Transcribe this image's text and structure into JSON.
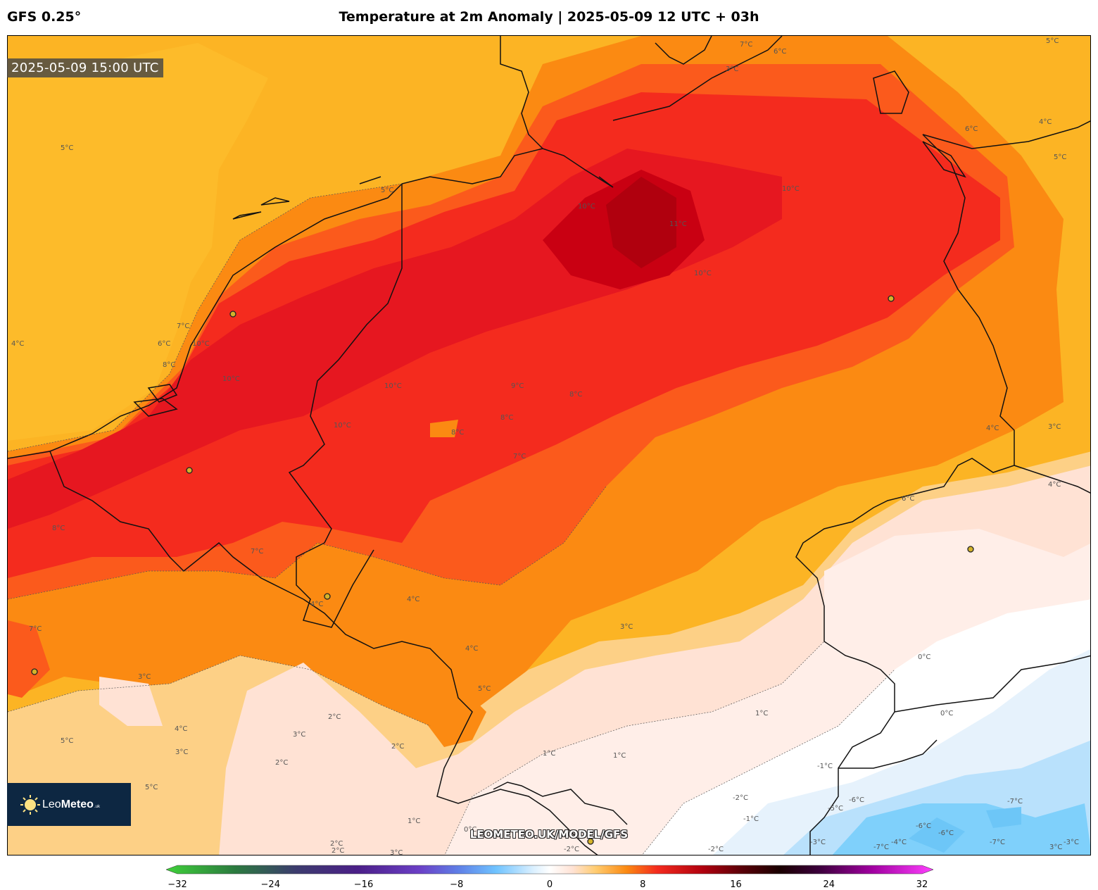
{
  "header": {
    "model_label": "GFS 0.25°",
    "title": "Temperature at 2m Anomaly | 2025-05-09 12 UTC + 03h"
  },
  "valid_time": "2025-05-09 15:00 UTC",
  "watermark": "LEOMETEO.UK/MODEL/GFS",
  "logo": {
    "name": "LeoMeteo",
    "name_light": "Leo",
    "name_bold": "Meteo",
    "suffix": ".uk"
  },
  "colorbar": {
    "min": -32,
    "max": 32,
    "ticks": [
      -32,
      -24,
      -16,
      -8,
      0,
      8,
      16,
      24,
      32
    ],
    "tick_labels": [
      "−32",
      "−24",
      "−16",
      "−8",
      "0",
      "8",
      "16",
      "24",
      "32"
    ],
    "colors": [
      "#3fd13a",
      "#2b7a3f",
      "#3c3b6e",
      "#4b1f88",
      "#6b3fc6",
      "#5f7ee6",
      "#6fc3ff",
      "#bfe6ff",
      "#ffffff",
      "#ffe6d6",
      "#ffd27a",
      "#ffa21a",
      "#ff5a1f",
      "#e8181c",
      "#b00010",
      "#5a0008",
      "#1a0000",
      "#4a004a",
      "#a000a0",
      "#ff40ff"
    ]
  },
  "contour_labels": [
    "5°C",
    "5°C",
    "4°C",
    "6°C",
    "7°C",
    "8°C",
    "10°C",
    "10°C",
    "10°C",
    "10°C",
    "11°C",
    "10°C",
    "10°C",
    "9°C",
    "8°C",
    "8°C",
    "8°C",
    "7°C",
    "10°C",
    "6°C",
    "5°C",
    "4°C",
    "8°C",
    "7°C",
    "7°C",
    "4°C",
    "4°C",
    "4°C",
    "5°C",
    "3°C",
    "3°C",
    "2°C",
    "2°C",
    "3°C",
    "2°C",
    "4°C",
    "3°C",
    "5°C",
    "5°C",
    "2°C",
    "0°C",
    "1°C",
    "1°C",
    "1°C",
    "0°C",
    "0°C",
    "-1°C",
    "-2°C",
    "-5°C",
    "-6°C",
    "-7°C",
    "-6°C",
    "-4°C",
    "-3°C",
    "-2°C",
    "-1°C",
    "4°C",
    "3°C",
    "-2°C",
    "2°C",
    "1°C",
    "3°C",
    "-6°C",
    "-7°C",
    "6°C",
    "5°C",
    "3°C",
    "4°C",
    "-3°C",
    "3°C",
    "-7°C",
    "6°C",
    "7°C"
  ],
  "cities": [
    "city-1",
    "city-2",
    "city-3",
    "city-4",
    "city-5",
    "city-6",
    "city-7"
  ],
  "legend_meaning": "temperature anomaly °C"
}
